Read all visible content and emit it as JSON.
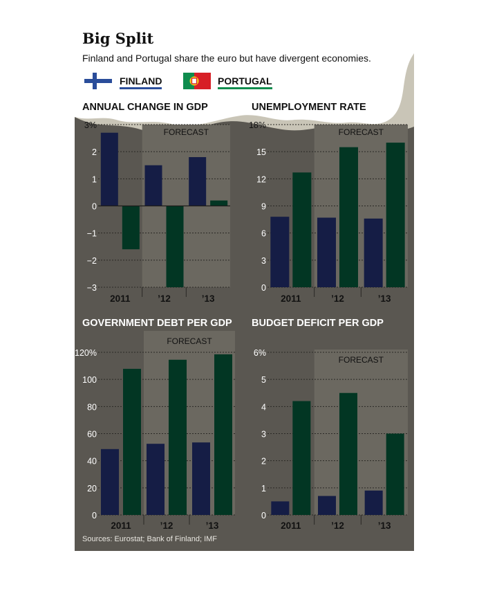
{
  "header": {
    "title": "Big Split",
    "subtitle": "Finland and Portugal share the euro but have divergent economies."
  },
  "legend": [
    {
      "name": "FINLAND",
      "color": "#151d45",
      "underline_color": "#2a4d9a",
      "icon": "finland-flag-icon"
    },
    {
      "name": "PORTUGAL",
      "color": "#023623",
      "underline_color": "#0f8c4e",
      "icon": "portugal-flag-icon"
    }
  ],
  "forecast_label": "FORECAST",
  "source": "Sources: Eurostat; Bank of Finland; IMF",
  "chart_data": [
    {
      "type": "bar",
      "title": "ANNUAL CHANGE IN GDP",
      "categories": [
        "2011",
        "’12",
        "’13"
      ],
      "series": [
        {
          "name": "FINLAND",
          "values": [
            2.7,
            1.5,
            1.8
          ]
        },
        {
          "name": "PORTUGAL",
          "values": [
            -1.6,
            -3.0,
            0.2
          ]
        }
      ],
      "ylim": [
        -3,
        3
      ],
      "yticks": [
        "3%",
        "2",
        "1",
        "0",
        "−1",
        "−2",
        "−3"
      ],
      "forecast_from": 1
    },
    {
      "type": "bar",
      "title": "UNEMPLOYMENT RATE",
      "categories": [
        "2011",
        "’12",
        "’13"
      ],
      "series": [
        {
          "name": "FINLAND",
          "values": [
            7.8,
            7.7,
            7.6
          ]
        },
        {
          "name": "PORTUGAL",
          "values": [
            12.7,
            15.5,
            16.0
          ]
        }
      ],
      "ylim": [
        0,
        18
      ],
      "yticks": [
        "18%",
        "15",
        "12",
        "9",
        "6",
        "3",
        "0"
      ],
      "forecast_from": 1
    },
    {
      "type": "bar",
      "title": "GOVERNMENT DEBT PER GDP",
      "categories": [
        "2011",
        "’12",
        "’13"
      ],
      "series": [
        {
          "name": "FINLAND",
          "values": [
            48.6,
            52.5,
            53.5
          ]
        },
        {
          "name": "PORTUGAL",
          "values": [
            107.8,
            114.5,
            118.5
          ]
        }
      ],
      "ylim": [
        0,
        120
      ],
      "yticks": [
        "120%",
        "100",
        "80",
        "60",
        "40",
        "20",
        "0"
      ],
      "forecast_from": 1
    },
    {
      "type": "bar",
      "title": "BUDGET DEFICIT PER GDP",
      "categories": [
        "2011",
        "’12",
        "’13"
      ],
      "series": [
        {
          "name": "FINLAND",
          "values": [
            0.5,
            0.7,
            0.9
          ]
        },
        {
          "name": "PORTUGAL",
          "values": [
            4.2,
            4.5,
            3.0
          ]
        }
      ],
      "ylim": [
        0,
        6
      ],
      "yticks": [
        "6%",
        "5",
        "4",
        "3",
        "2",
        "1",
        "0"
      ],
      "forecast_from": 1
    }
  ]
}
